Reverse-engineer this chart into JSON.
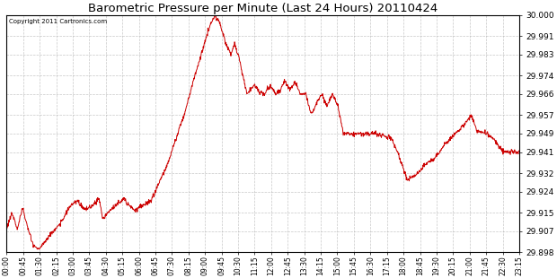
{
  "title": "Barometric Pressure per Minute (Last 24 Hours) 20110424",
  "copyright": "Copyright 2011 Cartronics.com",
  "line_color": "#cc0000",
  "background_color": "#ffffff",
  "grid_color": "#b0b0b0",
  "ylim": [
    29.898,
    30.0
  ],
  "yticks": [
    29.898,
    29.907,
    29.915,
    29.924,
    29.932,
    29.941,
    29.949,
    29.957,
    29.966,
    29.974,
    29.983,
    29.991,
    30.0
  ],
  "xtick_labels": [
    "00:00",
    "00:45",
    "01:30",
    "02:15",
    "03:00",
    "03:45",
    "04:30",
    "05:15",
    "06:00",
    "06:45",
    "07:30",
    "08:15",
    "09:00",
    "09:45",
    "10:30",
    "11:15",
    "12:00",
    "12:45",
    "13:30",
    "14:15",
    "15:00",
    "15:45",
    "16:30",
    "17:15",
    "18:00",
    "18:45",
    "19:30",
    "20:15",
    "21:00",
    "21:45",
    "22:30",
    "23:15"
  ],
  "n_points": 1440
}
